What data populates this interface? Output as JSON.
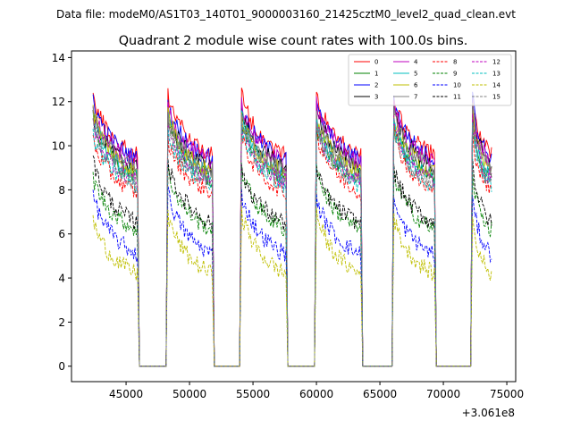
{
  "chart_data": {
    "type": "line",
    "suptitle": "Data file: modeM0/AS1T03_140T01_9000003160_21425cztM0_level2_quad_clean.evt",
    "title": "Quadrant 2 module wise count rates with 100.0s bins.",
    "xlabel": "",
    "ylabel": "",
    "x_offset_label": "+3.061e8",
    "xlim": [
      40700,
      75700
    ],
    "ylim": [
      -0.7,
      14.3
    ],
    "x_ticks": [
      45000,
      50000,
      55000,
      60000,
      65000,
      70000,
      75000
    ],
    "x_tick_labels": [
      "45000",
      "50000",
      "55000",
      "60000",
      "65000",
      "70000",
      "75000"
    ],
    "y_ticks": [
      0,
      2,
      4,
      6,
      8,
      10,
      12,
      14
    ],
    "y_tick_labels": [
      "0",
      "2",
      "4",
      "6",
      "8",
      "10",
      "12",
      "14"
    ],
    "legend_position": "upper-right",
    "gti_segments": [
      [
        42400,
        45900
      ],
      [
        48300,
        51800
      ],
      [
        54100,
        57600
      ],
      [
        60000,
        63500
      ],
      [
        66100,
        69300
      ],
      [
        72300,
        73800
      ]
    ],
    "series": [
      {
        "name": "0",
        "color": "#ff0000",
        "dash": "solid",
        "level": 10.4
      },
      {
        "name": "1",
        "color": "#008000",
        "dash": "solid",
        "level": 9.3
      },
      {
        "name": "2",
        "color": "#0000ff",
        "dash": "solid",
        "level": 10.2
      },
      {
        "name": "3",
        "color": "#000000",
        "dash": "solid",
        "level": 9.8
      },
      {
        "name": "4",
        "color": "#bf00bf",
        "dash": "solid",
        "level": 10.0
      },
      {
        "name": "5",
        "color": "#00bfbf",
        "dash": "solid",
        "level": 9.4
      },
      {
        "name": "6",
        "color": "#bfbf00",
        "dash": "solid",
        "level": 9.6
      },
      {
        "name": "7",
        "color": "#808080",
        "dash": "solid",
        "level": 9.7
      },
      {
        "name": "8",
        "color": "#ff0000",
        "dash": "dashed",
        "level": 8.7
      },
      {
        "name": "9",
        "color": "#008000",
        "dash": "dashed",
        "level": 7.0
      },
      {
        "name": "10",
        "color": "#0000ff",
        "dash": "dashed",
        "level": 5.9
      },
      {
        "name": "11",
        "color": "#000000",
        "dash": "dashed",
        "level": 7.3
      },
      {
        "name": "12",
        "color": "#bf00bf",
        "dash": "dashed",
        "level": 9.2
      },
      {
        "name": "13",
        "color": "#00bfbf",
        "dash": "dashed",
        "level": 9.0
      },
      {
        "name": "14",
        "color": "#bfbf00",
        "dash": "dashed",
        "level": 5.0
      },
      {
        "name": "15",
        "color": "#808080",
        "dash": "dashed",
        "level": 9.1
      }
    ]
  }
}
